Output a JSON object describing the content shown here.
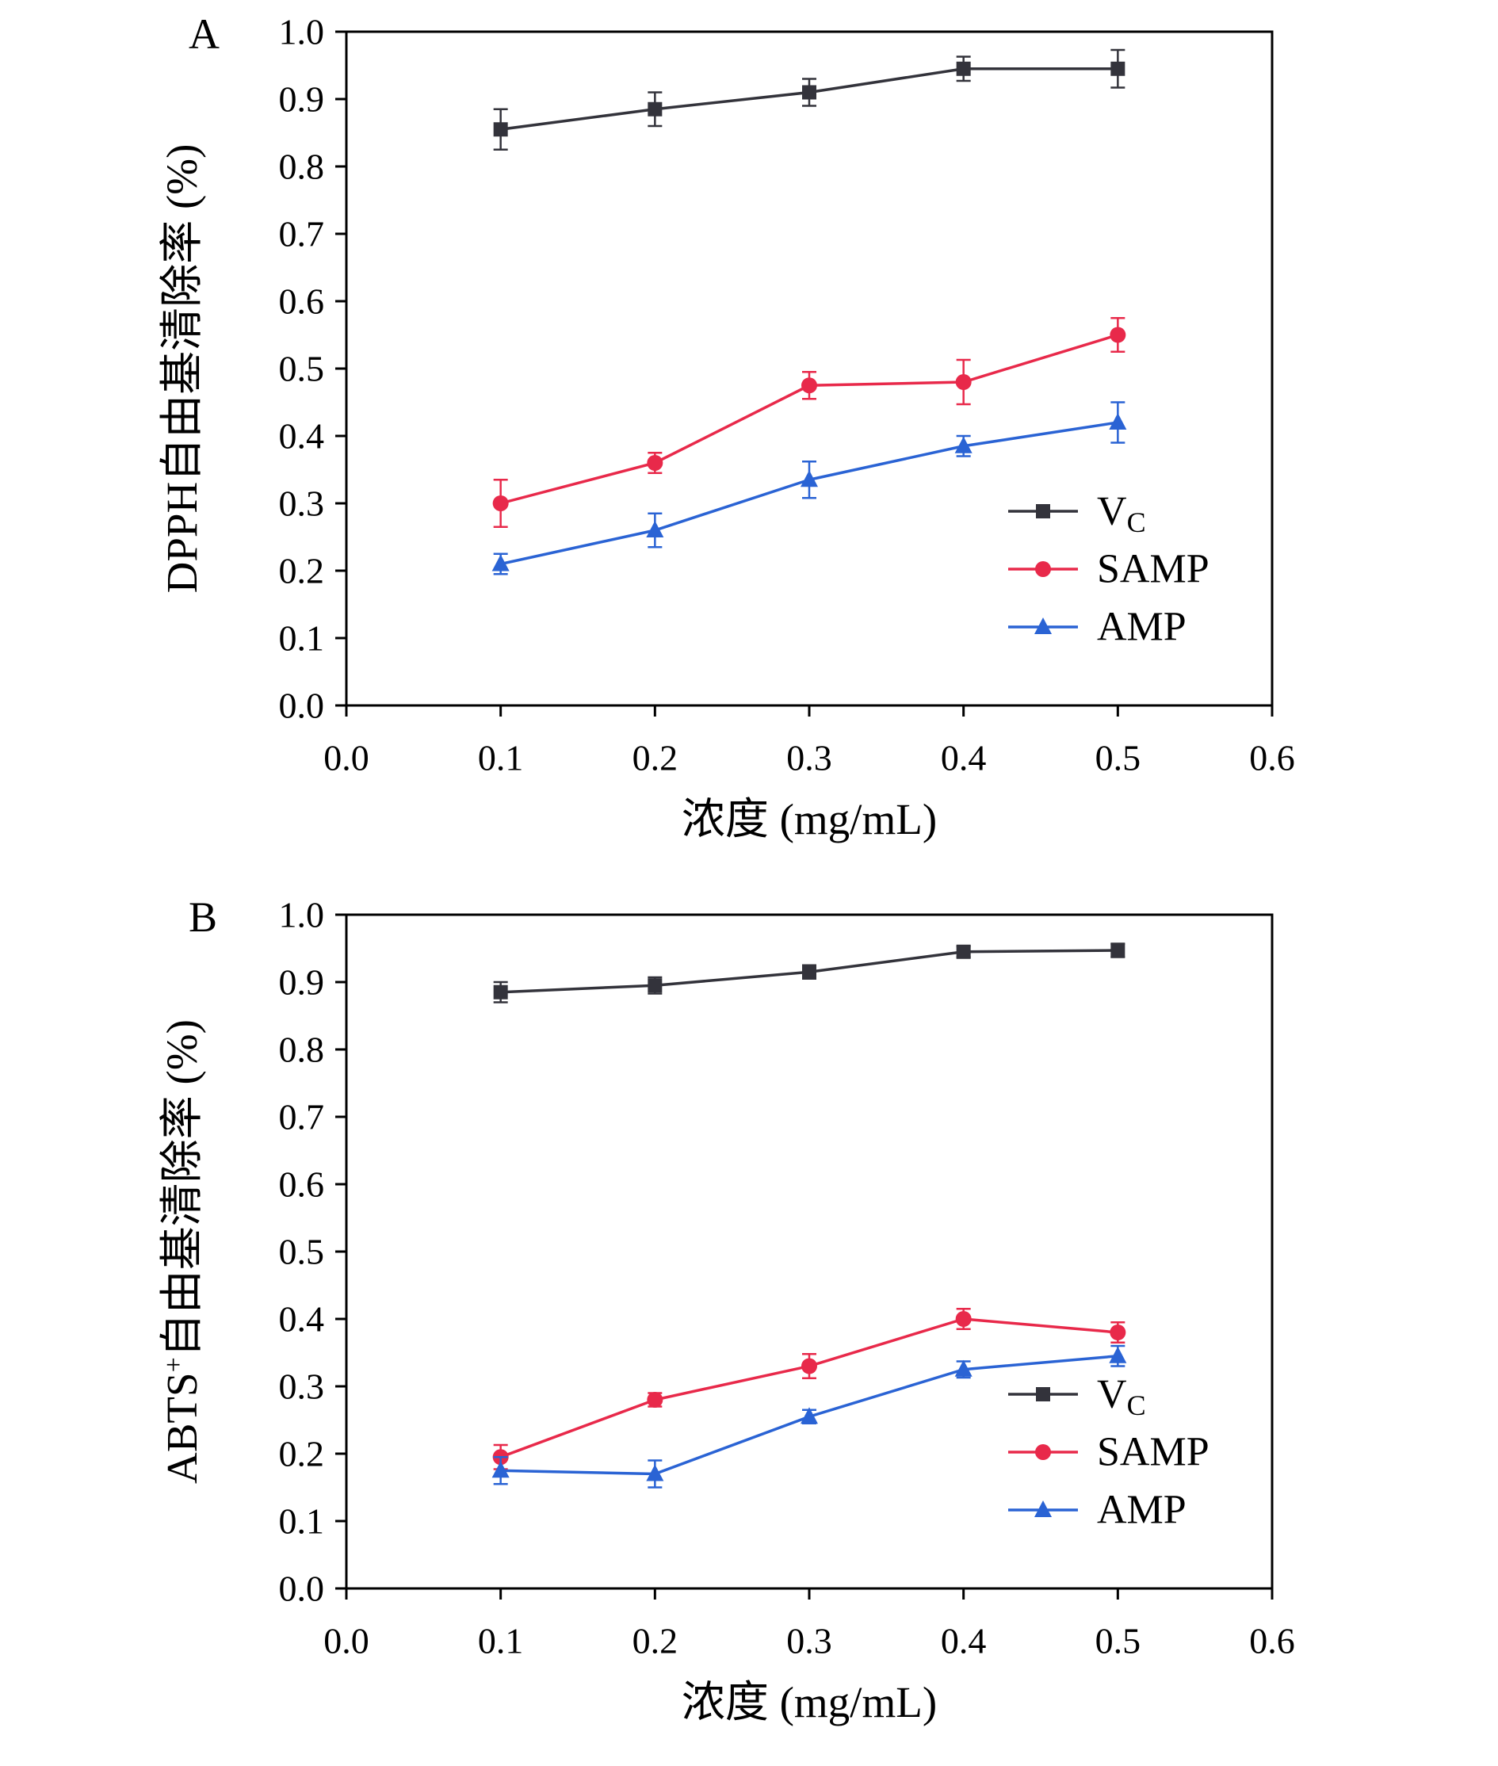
{
  "page": {
    "background": "#ffffff"
  },
  "colors": {
    "vc": "#33333b",
    "samp": "#e8294a",
    "amp": "#2a63d4",
    "axis": "#000000"
  },
  "chart_data": [
    {
      "type": "line",
      "panel_label": "A",
      "title": "",
      "xlabel": "浓度 (mg/mL)",
      "ylabel": "DPPH自由基清除率 (%)",
      "xlim": [
        0.0,
        0.6
      ],
      "ylim": [
        0.0,
        1.0
      ],
      "xticks": [
        0.0,
        0.1,
        0.2,
        0.3,
        0.4,
        0.5,
        0.6
      ],
      "yticks": [
        0.0,
        0.1,
        0.2,
        0.3,
        0.4,
        0.5,
        0.6,
        0.7,
        0.8,
        0.9,
        1.0
      ],
      "grid": false,
      "legend_position": "right-center-lower",
      "x": [
        0.1,
        0.2,
        0.3,
        0.4,
        0.5
      ],
      "series": [
        {
          "name": "VC",
          "label": "V_C",
          "marker": "square",
          "color": "#33333b",
          "values": [
            0.855,
            0.885,
            0.91,
            0.945,
            0.945
          ],
          "errors": [
            0.03,
            0.025,
            0.02,
            0.018,
            0.028
          ]
        },
        {
          "name": "SAMP",
          "label": "SAMP",
          "marker": "circle",
          "color": "#e8294a",
          "values": [
            0.3,
            0.36,
            0.475,
            0.48,
            0.55
          ],
          "errors": [
            0.035,
            0.015,
            0.02,
            0.033,
            0.025
          ]
        },
        {
          "name": "AMP",
          "label": "AMP",
          "marker": "triangle",
          "color": "#2a63d4",
          "values": [
            0.21,
            0.26,
            0.335,
            0.385,
            0.42
          ],
          "errors": [
            0.015,
            0.025,
            0.027,
            0.015,
            0.03
          ]
        }
      ]
    },
    {
      "type": "line",
      "panel_label": "B",
      "title": "",
      "xlabel": "浓度 (mg/mL)",
      "ylabel": "ABTS⁺自由基清除率 (%)",
      "xlim": [
        0.0,
        0.6
      ],
      "ylim": [
        0.0,
        1.0
      ],
      "xticks": [
        0.0,
        0.1,
        0.2,
        0.3,
        0.4,
        0.5,
        0.6
      ],
      "yticks": [
        0.0,
        0.1,
        0.2,
        0.3,
        0.4,
        0.5,
        0.6,
        0.7,
        0.8,
        0.9,
        1.0
      ],
      "grid": false,
      "legend_position": "right-center-lower",
      "x": [
        0.1,
        0.2,
        0.3,
        0.4,
        0.5
      ],
      "series": [
        {
          "name": "VC",
          "label": "V_C",
          "marker": "square",
          "color": "#33333b",
          "values": [
            0.885,
            0.895,
            0.915,
            0.945,
            0.947
          ],
          "errors": [
            0.015,
            0.012,
            0.01,
            0.008,
            0.01
          ]
        },
        {
          "name": "SAMP",
          "label": "SAMP",
          "marker": "circle",
          "color": "#e8294a",
          "values": [
            0.195,
            0.28,
            0.33,
            0.4,
            0.38
          ],
          "errors": [
            0.018,
            0.01,
            0.018,
            0.015,
            0.015
          ]
        },
        {
          "name": "AMP",
          "label": "AMP",
          "marker": "triangle",
          "color": "#2a63d4",
          "values": [
            0.175,
            0.17,
            0.255,
            0.325,
            0.345
          ],
          "errors": [
            0.02,
            0.02,
            0.01,
            0.012,
            0.015
          ]
        }
      ]
    }
  ]
}
